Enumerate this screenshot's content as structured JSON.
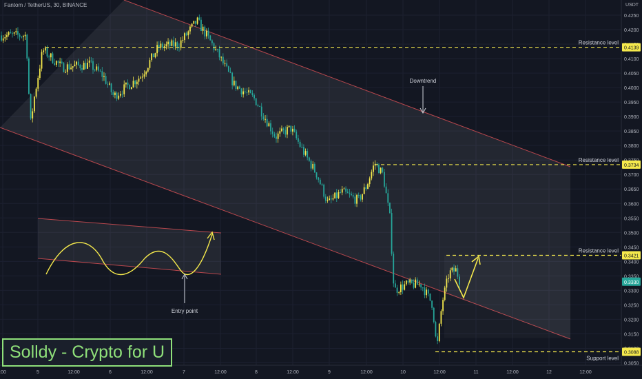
{
  "header": {
    "symbol": "Fantom / TetherUS, 30, BINANCE"
  },
  "price_axis": {
    "currency": "USDT",
    "ticks": [
      "0.4250",
      "0.4200",
      "0.4150",
      "0.4100",
      "0.4050",
      "0.4000",
      "0.3950",
      "0.3900",
      "0.3850",
      "0.3800",
      "0.3750",
      "0.3700",
      "0.3650",
      "0.3600",
      "0.3550",
      "0.3500",
      "0.3450",
      "0.3400",
      "0.3350",
      "0.3300",
      "0.3250",
      "0.3200",
      "0.3150",
      "0.3100",
      "0.3050"
    ]
  },
  "time_axis": {
    "ticks": [
      ":00",
      "5",
      "12:00",
      "6",
      "12:00",
      "7",
      "12:00",
      "8",
      "12:00",
      "9",
      "12:00",
      "10",
      "12:00",
      "11",
      "12:00",
      "12",
      "12:00"
    ]
  },
  "badges": [
    {
      "label": "0.4139",
      "kind": "resistance"
    },
    {
      "label": "0.3734",
      "kind": "resistance"
    },
    {
      "label": "0.3421",
      "kind": "resistance"
    },
    {
      "label": "0.3330",
      "kind": "current"
    },
    {
      "label": "0.3088",
      "kind": "support"
    }
  ],
  "annotations": {
    "resistance_label": "Resistance level",
    "support_label": "Support level",
    "downtrend_label": "Downtrend",
    "entry_label": "Entry point"
  },
  "brand": "Solldy - Crypto for U",
  "colors": {
    "background": "#131722",
    "bull": "#f5e94c",
    "bear": "#26a69a",
    "channel_line": "#b8474d",
    "level_line": "#f5e94c",
    "brand_green": "#8fe07a",
    "current_price": "#26a69a"
  },
  "chart_data": {
    "type": "candlestick",
    "title": "Fantom / TetherUS, 30, BINANCE",
    "xlabel": "",
    "ylabel": "USDT",
    "ylim": [
      0.3025,
      0.428
    ],
    "x_ticks": [
      ":00",
      "5",
      "12:00",
      "6",
      "12:00",
      "7",
      "12:00",
      "8",
      "12:00",
      "9",
      "12:00",
      "10",
      "12:00",
      "11",
      "12:00",
      "12",
      "12:00"
    ],
    "y_ticks": [
      0.425,
      0.42,
      0.415,
      0.41,
      0.405,
      0.4,
      0.395,
      0.39,
      0.385,
      0.38,
      0.375,
      0.37,
      0.365,
      0.36,
      0.355,
      0.35,
      0.345,
      0.34,
      0.335,
      0.33,
      0.325,
      0.32,
      0.315,
      0.31,
      0.305
    ],
    "close_path_estimate": [
      {
        "x": ":00",
        "y": 0.418
      },
      {
        "x": "5",
        "y": 0.397
      },
      {
        "x": "5",
        "y": 0.413
      },
      {
        "x": "12:00",
        "y": 0.406
      },
      {
        "x": "6",
        "y": 0.402
      },
      {
        "x": "12:00",
        "y": 0.408
      },
      {
        "x": "7",
        "y": 0.423
      },
      {
        "x": "12:00",
        "y": 0.409
      },
      {
        "x": "8",
        "y": 0.389
      },
      {
        "x": "12:00",
        "y": 0.371
      },
      {
        "x": "9",
        "y": 0.367
      },
      {
        "x": "12:00",
        "y": 0.373
      },
      {
        "x": "10",
        "y": 0.332
      },
      {
        "x": "12:00",
        "y": 0.3095
      },
      {
        "x": "12:00",
        "y": 0.333
      }
    ],
    "levels": [
      {
        "name": "Resistance level",
        "value": 0.4139
      },
      {
        "name": "Resistance level",
        "value": 0.3734
      },
      {
        "name": "Resistance level",
        "value": 0.3421
      },
      {
        "name": "Support level",
        "value": 0.3088
      }
    ],
    "last_price": 0.333,
    "annotations": [
      "Downtrend",
      "Entry point"
    ]
  }
}
